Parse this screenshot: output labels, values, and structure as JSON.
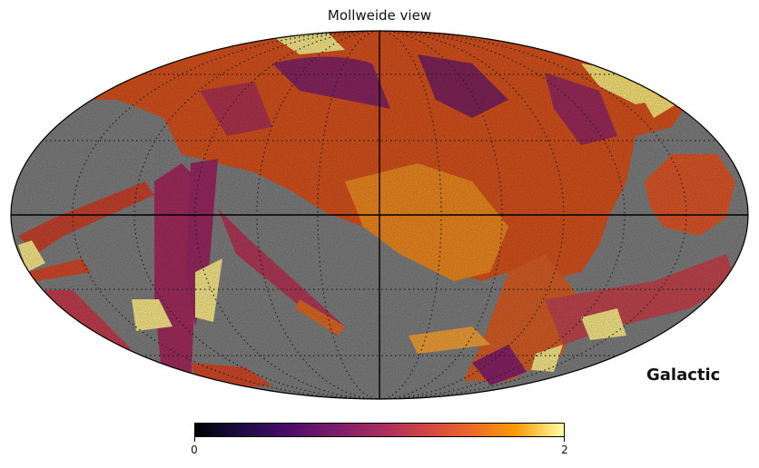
{
  "title": "Mollweide view",
  "coord_label": "Galactic",
  "colorbar": {
    "min_label": "0",
    "max_label": "2",
    "colormap": "inferno"
  },
  "map": {
    "projection": "Mollweide",
    "masked_color": "#808080",
    "graticule": "dotted",
    "axes_lines": "solid"
  }
}
